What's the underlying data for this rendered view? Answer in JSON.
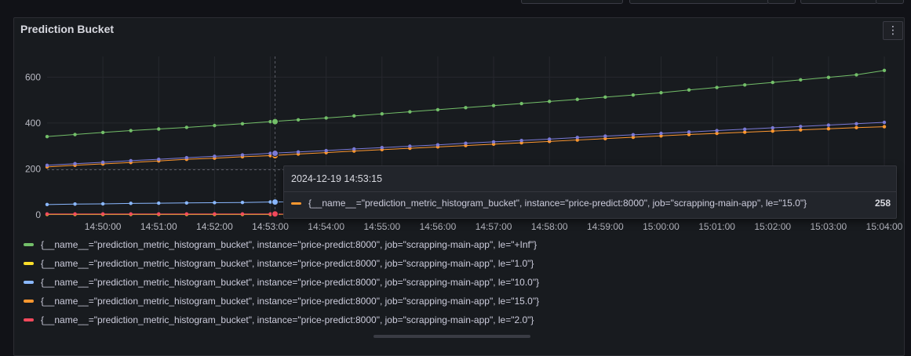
{
  "panel": {
    "title": "Prediction Bucket",
    "menu_icon": "vertical-ellipsis-icon",
    "menu_glyph": "⋮"
  },
  "chart_data": {
    "type": "line",
    "x": [
      "14:49:00",
      "14:49:30",
      "14:50:00",
      "14:50:30",
      "14:51:00",
      "14:51:30",
      "14:52:00",
      "14:52:30",
      "14:53:00",
      "14:53:30",
      "14:54:00",
      "14:54:30",
      "14:55:00",
      "14:55:30",
      "14:56:00",
      "14:56:30",
      "14:57:00",
      "14:57:30",
      "14:58:00",
      "14:58:30",
      "14:59:00",
      "14:59:30",
      "15:00:00",
      "15:00:30",
      "15:01:00",
      "15:01:30",
      "15:02:00",
      "15:02:30",
      "15:03:00",
      "15:03:30",
      "15:04:00"
    ],
    "xticks": [
      "14:50:00",
      "14:51:00",
      "14:52:00",
      "14:53:00",
      "14:54:00",
      "14:55:00",
      "14:56:00",
      "14:57:00",
      "14:58:00",
      "14:59:00",
      "15:00:00",
      "15:01:00",
      "15:02:00",
      "15:03:00",
      "15:04:00"
    ],
    "yticks": [
      0,
      200,
      400,
      600
    ],
    "ylim": [
      0,
      690
    ],
    "grid": true,
    "legend_position": "bottom",
    "series": [
      {
        "name": "{__name__=\"prediction_metric_histogram_bucket\", instance=\"price-predict:8000\", job=\"scrapping-main-app\", le=\"+Inf\"}",
        "color": "#73bf69",
        "values": [
          341,
          350,
          359,
          367,
          374,
          381,
          389,
          397,
          406,
          414,
          422,
          431,
          440,
          449,
          458,
          467,
          476,
          485,
          494,
          503,
          513,
          522,
          532,
          544,
          555,
          566,
          577,
          588,
          599,
          610,
          629
        ]
      },
      {
        "name": "{__name__=\"prediction_metric_histogram_bucket\", instance=\"price-predict:8000\", job=\"scrapping-main-app\", le=\"1.0\"}",
        "color": "#fade2a",
        "values": [
          2,
          2,
          2,
          2,
          2,
          2,
          2,
          2,
          2,
          2,
          2,
          2,
          2,
          2,
          2,
          2,
          2,
          2,
          2,
          2,
          2,
          2,
          2,
          2,
          2,
          2,
          2,
          2,
          2,
          2,
          2
        ]
      },
      {
        "name": "{__name__=\"prediction_metric_histogram_bucket\", instance=\"price-predict:8000\", job=\"scrapping-main-app\", le=\"10.0\"}",
        "color": "#8ab8ff",
        "values": [
          45,
          47,
          48,
          50,
          51,
          52,
          53,
          54,
          56,
          57,
          58,
          59,
          60,
          61,
          62,
          63,
          64,
          65,
          66,
          67,
          68,
          69,
          70,
          71,
          72,
          73,
          74,
          75,
          76,
          77,
          78
        ]
      },
      {
        "name": "{__name__=\"prediction_metric_histogram_bucket\", instance=\"price-predict:8000\", job=\"scrapping-main-app\", le=\"15.0\"}",
        "color": "#ff9830",
        "values": [
          209,
          216,
          222,
          228,
          235,
          242,
          247,
          253,
          258,
          265,
          271,
          278,
          284,
          290,
          296,
          302,
          308,
          314,
          320,
          326,
          332,
          338,
          344,
          350,
          355,
          360,
          365,
          370,
          375,
          380,
          384
        ]
      },
      {
        "name": "{__name__=\"prediction_metric_histogram_bucket\", instance=\"price-predict:8000\", job=\"scrapping-main-app\", le=\"2.0\"}",
        "color": "#f2495c",
        "values": [
          4,
          4,
          4,
          4,
          4,
          4,
          4,
          4,
          4,
          4,
          4,
          4,
          4,
          4,
          4,
          4,
          4,
          4,
          4,
          4,
          4,
          4,
          4,
          4,
          4,
          4,
          4,
          4,
          4,
          4,
          4
        ]
      },
      {
        "name": "",
        "color": "#7b7ad6",
        "values": [
          216,
          223,
          229,
          236,
          242,
          249,
          255,
          261,
          268,
          274,
          280,
          287,
          293,
          299,
          305,
          312,
          318,
          324,
          330,
          337,
          343,
          349,
          355,
          361,
          367,
          373,
          379,
          385,
          391,
          397,
          403
        ]
      }
    ],
    "hover_index": 8
  },
  "tooltip": {
    "time": "2024-12-19 14:53:15",
    "label": "{__name__=\"prediction_metric_histogram_bucket\", instance=\"price-predict:8000\", job=\"scrapping-main-app\", le=\"15.0\"}",
    "value": "258",
    "color": "#ff9830"
  },
  "legend": [
    {
      "label": "{__name__=\"prediction_metric_histogram_bucket\", instance=\"price-predict:8000\", job=\"scrapping-main-app\", le=\"+Inf\"}",
      "color": "#73bf69"
    },
    {
      "label": "{__name__=\"prediction_metric_histogram_bucket\", instance=\"price-predict:8000\", job=\"scrapping-main-app\", le=\"1.0\"}",
      "color": "#fade2a"
    },
    {
      "label": "{__name__=\"prediction_metric_histogram_bucket\", instance=\"price-predict:8000\", job=\"scrapping-main-app\", le=\"10.0\"}",
      "color": "#8ab8ff"
    },
    {
      "label": "{__name__=\"prediction_metric_histogram_bucket\", instance=\"price-predict:8000\", job=\"scrapping-main-app\", le=\"15.0\"}",
      "color": "#ff9830"
    },
    {
      "label": "{__name__=\"prediction_metric_histogram_bucket\", instance=\"price-predict:8000\", job=\"scrapping-main-app\", le=\"2.0\"}",
      "color": "#f2495c"
    }
  ]
}
